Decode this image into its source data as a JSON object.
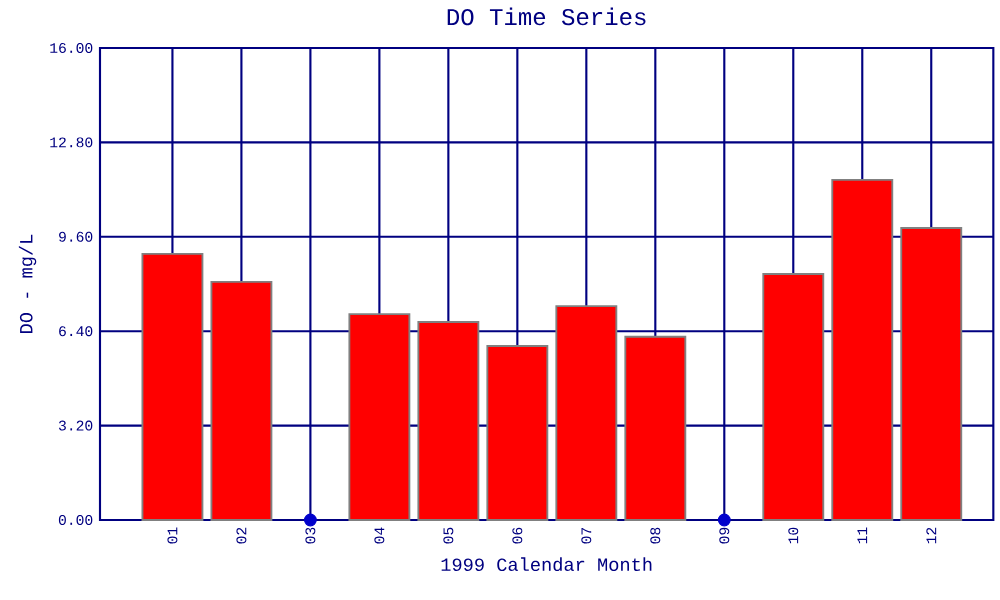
{
  "chart_data": {
    "type": "bar",
    "title": "DO Time Series",
    "xlabel": "1999 Calendar Month",
    "ylabel": "DO - mg/L",
    "categories": [
      "01",
      "02",
      "03",
      "04",
      "05",
      "06",
      "07",
      "08",
      "09",
      "10",
      "11",
      "12"
    ],
    "series": [
      {
        "color": "#ff0000",
        "values": [
          9.02,
          8.07,
          null,
          6.98,
          6.71,
          5.9,
          7.25,
          6.21,
          null,
          8.34,
          11.53,
          9.9
        ]
      },
      {
        "type": "scatter",
        "color": "#0000cc",
        "x": [
          "03",
          "09"
        ],
        "values": [
          0,
          0
        ]
      }
    ],
    "ylim": [
      0,
      16
    ],
    "yticks": [
      {
        "value": 0,
        "label": "0.00"
      },
      {
        "value": 3.2,
        "label": "3.20"
      },
      {
        "value": 6.4,
        "label": "6.40"
      },
      {
        "value": 9.6,
        "label": "9.60"
      },
      {
        "value": 12.8,
        "label": "12.80"
      },
      {
        "value": 16,
        "label": "16.00"
      }
    ],
    "grid": true,
    "marker": "circle"
  }
}
